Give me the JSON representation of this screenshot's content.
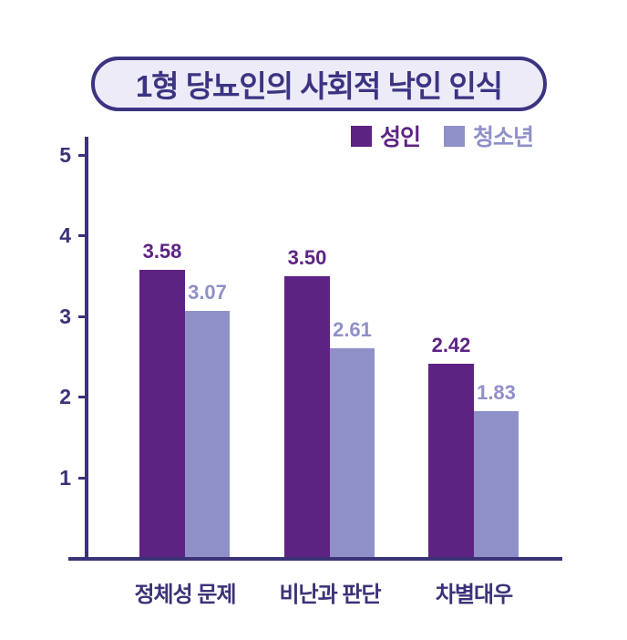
{
  "title": "1형 당뇨인의 사회적 낙인 인식",
  "colors": {
    "adult": "#5D2383",
    "youth": "#8F90C8",
    "axis": "#3A3378",
    "title_text": "#3B3482",
    "title_fill": "#EDEBF8",
    "title_border": "#3B3482"
  },
  "chart_data": {
    "type": "bar",
    "title": "1형 당뇨인의 사회적 낙인 인식",
    "categories": [
      "정체성 문제",
      "비난과 판단",
      "차별대우"
    ],
    "series": [
      {
        "name": "성인",
        "values": [
          3.58,
          3.5,
          2.42
        ],
        "color": "#5D2383"
      },
      {
        "name": "청소년",
        "values": [
          3.07,
          2.61,
          1.83
        ],
        "color": "#8F90C8"
      }
    ],
    "xlabel": "",
    "ylabel": "",
    "ylim": [
      0,
      5
    ],
    "yticks": [
      1,
      2,
      3,
      4,
      5
    ],
    "grid": false,
    "legend_position": "top-right",
    "value_labels_decimals": 2
  }
}
